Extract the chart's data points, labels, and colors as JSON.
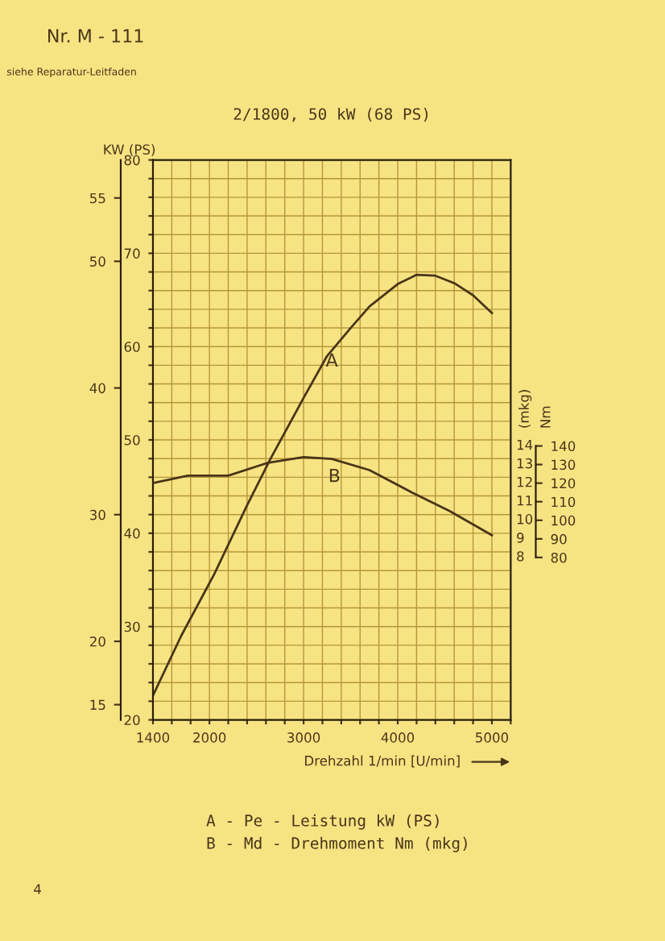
{
  "chart_data": {
    "type": "line",
    "title": "2/1800, 50 kW (68 PS)",
    "xlabel": "Drehzahl 1/min [U/min]",
    "ylabel": "KW (PS)",
    "y2label": "Nm",
    "series": [
      {
        "color": "#4a3518",
        "x": [
          1400,
          1700,
          2050,
          2400,
          2650,
          3000,
          3250,
          3500,
          3700,
          4000,
          4200,
          4400,
          4600,
          4800,
          5000
        ],
        "values": [
          22.6,
          29,
          35.6,
          43,
          48,
          54.5,
          59,
          62,
          64.3,
          66.7,
          67.7,
          67.6,
          66.8,
          65.5,
          63.6
        ]
      },
      {
        "color": "#4a3518",
        "axis": "y2",
        "x": [
          1400,
          1770,
          2200,
          2625,
          3000,
          3300,
          3700,
          4150,
          4550,
          5000
        ],
        "values": [
          120,
          124,
          124,
          131,
          134,
          133,
          127,
          115,
          105,
          92
        ]
      }
    ],
    "xlim": [
      1400,
      5200
    ],
    "xticks": [
      1400,
      {
        "value": 1600,
        "label": null
      },
      {
        "value": 1800,
        "label": null
      },
      2000,
      {
        "value": 2200,
        "label": null
      },
      {
        "value": 2400,
        "label": null
      },
      {
        "value": 2600,
        "label": null
      },
      {
        "value": 2800,
        "label": null
      },
      3000,
      {
        "value": 3200,
        "label": null
      },
      {
        "value": 3400,
        "label": null
      },
      {
        "value": 3600,
        "label": null
      },
      {
        "value": 3800,
        "label": null
      },
      4000,
      {
        "value": 4200,
        "label": null
      },
      {
        "value": 4400,
        "label": null
      },
      {
        "value": 4600,
        "label": null
      },
      {
        "value": 4800,
        "label": null
      },
      5000,
      {
        "value": 5200,
        "label": null
      }
    ],
    "ylim": [
      20,
      80
    ],
    "yticks": [
      20,
      {
        "value": 22,
        "label": null
      },
      {
        "value": 24,
        "label": null
      },
      {
        "value": 26,
        "label": null
      },
      {
        "value": 28,
        "label": null
      },
      30,
      {
        "value": 32,
        "label": null
      },
      {
        "value": 34,
        "label": null
      },
      {
        "value": 36,
        "label": null
      },
      {
        "value": 38,
        "label": null
      },
      40,
      {
        "value": 42,
        "label": null
      },
      {
        "value": 44,
        "label": null
      },
      {
        "value": 46,
        "label": null
      },
      {
        "value": 48,
        "label": null
      },
      50,
      {
        "value": 52,
        "label": null
      },
      {
        "value": 54,
        "label": null
      },
      {
        "value": 56,
        "label": null
      },
      {
        "value": 58,
        "label": null
      },
      60,
      {
        "value": 62,
        "label": null
      },
      {
        "value": 64,
        "label": null
      },
      {
        "value": 66,
        "label": null
      },
      {
        "value": 68,
        "label": null
      },
      70,
      {
        "value": 72,
        "label": null
      },
      {
        "value": 74,
        "label": null
      },
      {
        "value": 76,
        "label": null
      },
      {
        "value": 78,
        "label": null
      },
      80
    ],
    "y2lim": [
      -7.4,
      293.9
    ],
    "y2ticks": [
      80,
      90,
      100,
      110,
      120,
      130,
      140
    ],
    "y3lim": [
      13.8,
      58.0
    ],
    "y3ticks": [
      15,
      20,
      30,
      40,
      50,
      55
    ],
    "grid": true,
    "marker": "none",
    "line_style": "solid",
    "annotations": [
      {
        "text": "A",
        "x": 3300,
        "y": 58.4
      },
      "B",
      "A - Pe - Leistung kW (PS)",
      "B - Md - Drehmoment Nm (mkg)",
      "Nr. M - 111",
      "siehe Reparatur-Leitfaden",
      "4",
      "(mkg)",
      "8",
      "9",
      "10",
      "11",
      "12",
      "13",
      "14"
    ]
  }
}
